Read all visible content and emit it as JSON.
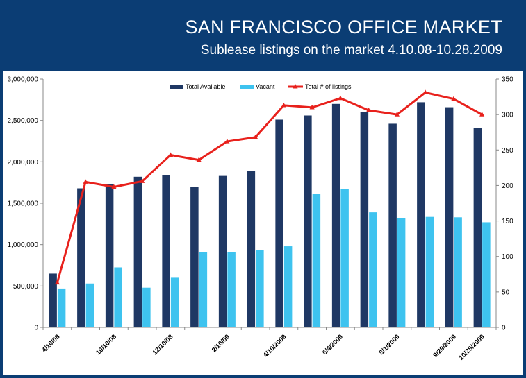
{
  "header": {
    "title": "SAN FRANCISCO OFFICE MARKET",
    "subtitle": "Sublease listings on the market 4.10.08-10.28.2009"
  },
  "colors": {
    "background": "#0b3d74",
    "total_available": "#1f3864",
    "vacant": "#3ec3ef",
    "listings": "#e8211c"
  },
  "chart_data": {
    "type": "bar",
    "title": "",
    "xlabel": "",
    "ylabel": "",
    "ylim": [
      0,
      3000000
    ],
    "y2lim": [
      0,
      350
    ],
    "legend_position": "top-center",
    "grid": false,
    "yticks": [
      "0",
      "500,000",
      "1,000,000",
      "1,500,000",
      "2,000,000",
      "2,500,000",
      "3,000,000"
    ],
    "y2ticks": [
      "0",
      "50",
      "100",
      "150",
      "200",
      "250",
      "300",
      "350"
    ],
    "x_tick_labels": [
      {
        "index": 0,
        "label": "4/10/08"
      },
      {
        "index": 2,
        "label": "10/10/08"
      },
      {
        "index": 4,
        "label": "12/10/08"
      },
      {
        "index": 6,
        "label": "2/10/09"
      },
      {
        "index": 8,
        "label": "4/10/2009"
      },
      {
        "index": 10,
        "label": "6/4/2009"
      },
      {
        "index": 12,
        "label": "8/1/2009"
      },
      {
        "index": 14,
        "label": "9/29/2009"
      },
      {
        "index": 15,
        "label": "10/28/2009"
      }
    ],
    "n_categories": 16,
    "series": [
      {
        "name": "Total Available",
        "kind": "bar",
        "axis": "left",
        "color": "#1f3864",
        "values": [
          650000,
          1680000,
          1730000,
          1820000,
          1840000,
          1700000,
          1830000,
          1890000,
          2510000,
          2560000,
          2700000,
          2600000,
          2460000,
          2720000,
          2660000,
          2410000
        ]
      },
      {
        "name": "Vacant",
        "kind": "bar",
        "axis": "left",
        "color": "#3ec3ef",
        "values": [
          470000,
          530000,
          725000,
          480000,
          600000,
          910000,
          905000,
          935000,
          980000,
          1610000,
          1670000,
          1390000,
          1320000,
          1335000,
          1330000,
          1270000
        ]
      },
      {
        "name": "Total # of listings",
        "kind": "line",
        "axis": "right",
        "color": "#e8211c",
        "values": [
          63,
          205,
          198,
          206,
          243,
          236,
          262,
          268,
          313,
          310,
          323,
          306,
          300,
          331,
          322,
          300
        ]
      }
    ]
  }
}
